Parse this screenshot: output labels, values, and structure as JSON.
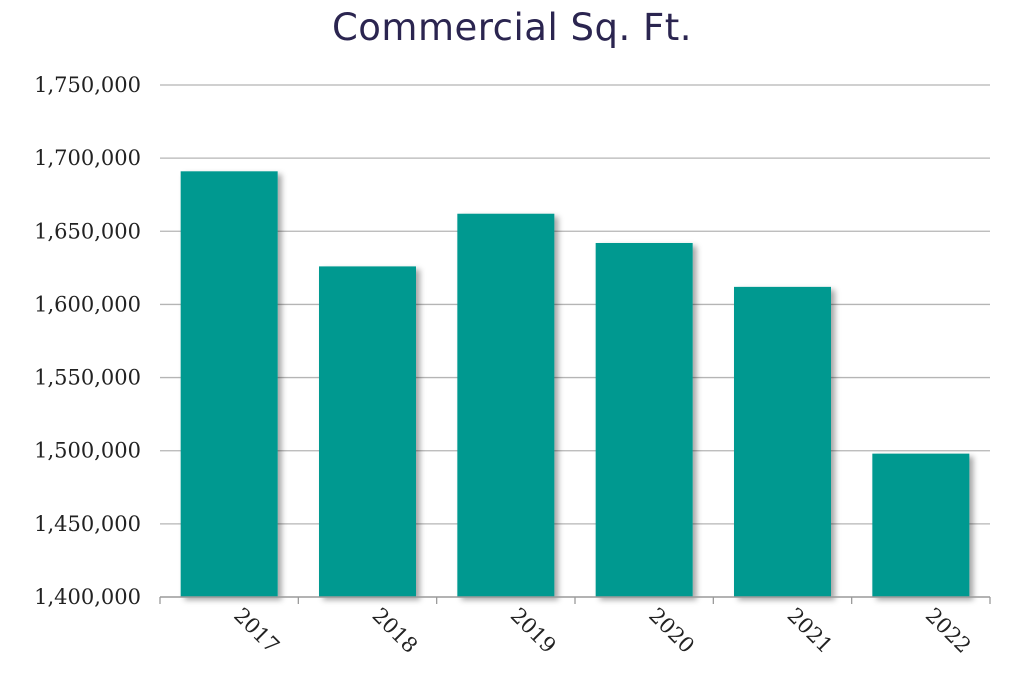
{
  "chart_data": {
    "type": "bar",
    "title": "Commercial Sq. Ft.",
    "xlabel": "",
    "ylabel": "",
    "categories": [
      "2017",
      "2018",
      "2019",
      "2020",
      "2021",
      "2022"
    ],
    "values": [
      1691000,
      1626000,
      1662000,
      1642000,
      1612000,
      1498000
    ],
    "ylim": [
      1400000,
      1750000
    ],
    "yticks": [
      1400000,
      1450000,
      1500000,
      1550000,
      1600000,
      1650000,
      1700000,
      1750000
    ],
    "ytick_labels": [
      "1,400,000",
      "1,450,000",
      "1,500,000",
      "1,550,000",
      "1,600,000",
      "1,650,000",
      "1,700,000",
      "1,750,000"
    ],
    "grid": true,
    "legend": "none",
    "colors": {
      "bar": "#009990",
      "title": "#2b2550",
      "grid": "#b5b5b5",
      "axis": "#9a9a9a"
    }
  }
}
